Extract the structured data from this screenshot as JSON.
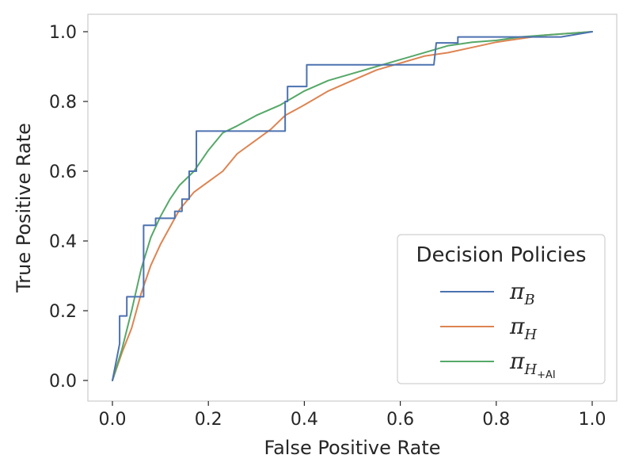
{
  "chart_data": {
    "type": "line",
    "title": "",
    "xlabel": "False Positive Rate",
    "ylabel": "True Positive Rate",
    "xlim": [
      0.0,
      1.0
    ],
    "ylim": [
      0.0,
      1.0
    ],
    "xticks": [
      "0.0",
      "0.2",
      "0.4",
      "0.6",
      "0.8",
      "1.0"
    ],
    "yticks": [
      "0.0",
      "0.2",
      "0.4",
      "0.6",
      "0.8",
      "1.0"
    ],
    "grid": false,
    "legend": {
      "title": "Decision Policies",
      "placement": "lower-right"
    },
    "series": [
      {
        "name": "π_B",
        "symbol": "π",
        "subscript": "B",
        "subsubscript": "",
        "color": "#4c72b0",
        "step": true,
        "points": [
          [
            0.0,
            0.0
          ],
          [
            0.015,
            0.105
          ],
          [
            0.015,
            0.185
          ],
          [
            0.03,
            0.185
          ],
          [
            0.03,
            0.24
          ],
          [
            0.065,
            0.24
          ],
          [
            0.065,
            0.445
          ],
          [
            0.09,
            0.445
          ],
          [
            0.09,
            0.465
          ],
          [
            0.13,
            0.465
          ],
          [
            0.13,
            0.485
          ],
          [
            0.145,
            0.485
          ],
          [
            0.145,
            0.52
          ],
          [
            0.16,
            0.52
          ],
          [
            0.16,
            0.6
          ],
          [
            0.175,
            0.6
          ],
          [
            0.175,
            0.715
          ],
          [
            0.36,
            0.715
          ],
          [
            0.36,
            0.8
          ],
          [
            0.365,
            0.8
          ],
          [
            0.365,
            0.843
          ],
          [
            0.405,
            0.843
          ],
          [
            0.405,
            0.905
          ],
          [
            0.67,
            0.905
          ],
          [
            0.675,
            0.968
          ],
          [
            0.72,
            0.968
          ],
          [
            0.72,
            0.985
          ],
          [
            0.935,
            0.985
          ],
          [
            1.0,
            1.0
          ]
        ]
      },
      {
        "name": "π_H",
        "symbol": "π",
        "subscript": "H",
        "subsubscript": "",
        "color": "#dd8452",
        "step": false,
        "points": [
          [
            0.0,
            0.0
          ],
          [
            0.02,
            0.08
          ],
          [
            0.04,
            0.15
          ],
          [
            0.06,
            0.25
          ],
          [
            0.08,
            0.33
          ],
          [
            0.1,
            0.39
          ],
          [
            0.12,
            0.44
          ],
          [
            0.14,
            0.49
          ],
          [
            0.17,
            0.54
          ],
          [
            0.2,
            0.57
          ],
          [
            0.23,
            0.6
          ],
          [
            0.26,
            0.65
          ],
          [
            0.3,
            0.69
          ],
          [
            0.33,
            0.72
          ],
          [
            0.36,
            0.76
          ],
          [
            0.4,
            0.79
          ],
          [
            0.45,
            0.83
          ],
          [
            0.5,
            0.86
          ],
          [
            0.55,
            0.89
          ],
          [
            0.6,
            0.91
          ],
          [
            0.65,
            0.93
          ],
          [
            0.7,
            0.94
          ],
          [
            0.75,
            0.955
          ],
          [
            0.8,
            0.97
          ],
          [
            0.85,
            0.98
          ],
          [
            0.9,
            0.99
          ],
          [
            1.0,
            1.0
          ]
        ]
      },
      {
        "name": "π_H+AI",
        "symbol": "π",
        "subscript": "H",
        "subsubscript": "+AI",
        "color": "#55a868",
        "step": false,
        "points": [
          [
            0.0,
            0.0
          ],
          [
            0.02,
            0.09
          ],
          [
            0.04,
            0.2
          ],
          [
            0.06,
            0.32
          ],
          [
            0.08,
            0.41
          ],
          [
            0.1,
            0.47
          ],
          [
            0.12,
            0.52
          ],
          [
            0.14,
            0.56
          ],
          [
            0.17,
            0.6
          ],
          [
            0.2,
            0.66
          ],
          [
            0.23,
            0.71
          ],
          [
            0.26,
            0.73
          ],
          [
            0.3,
            0.76
          ],
          [
            0.35,
            0.79
          ],
          [
            0.4,
            0.83
          ],
          [
            0.45,
            0.86
          ],
          [
            0.5,
            0.88
          ],
          [
            0.55,
            0.9
          ],
          [
            0.6,
            0.92
          ],
          [
            0.65,
            0.94
          ],
          [
            0.7,
            0.96
          ],
          [
            0.75,
            0.97
          ],
          [
            0.8,
            0.975
          ],
          [
            0.85,
            0.985
          ],
          [
            0.9,
            0.99
          ],
          [
            1.0,
            1.0
          ]
        ]
      }
    ]
  }
}
